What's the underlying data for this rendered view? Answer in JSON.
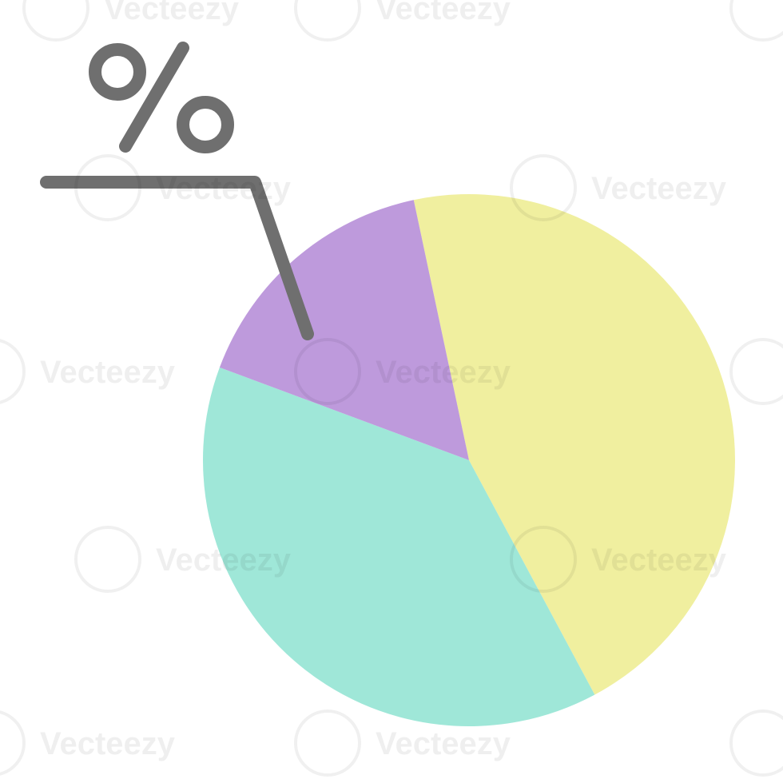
{
  "chart_data": {
    "type": "pie",
    "title": "",
    "slices": [
      {
        "value": 45.5,
        "color": "#f0ef9f"
      },
      {
        "value": 38.5,
        "color": "#9fe7d8"
      },
      {
        "value": 16.0,
        "color": "#be9adc"
      }
    ],
    "start_angle_deg": -12
  },
  "callout": {
    "symbol": "%",
    "icon": "percent-icon",
    "color": "#6f6f6f"
  },
  "watermark": {
    "text": "Vecteezy",
    "icon": "vecteezy-logo-icon"
  }
}
